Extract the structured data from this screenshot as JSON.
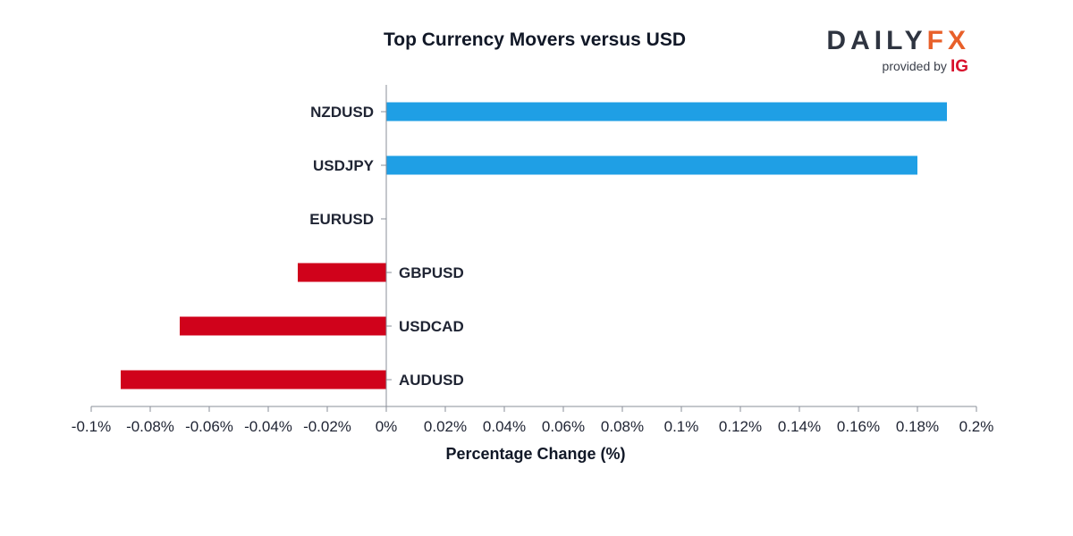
{
  "logo": {
    "brand_primary": "DAILY",
    "brand_secondary": "FX",
    "provided_by": "provided by",
    "sponsor": "IG"
  },
  "colors": {
    "positive": "#1f9fe5",
    "negative": "#d0021b",
    "axis": "#8a8f99",
    "text": "#1f2433",
    "brand_dark": "#2e3440",
    "brand_orange": "#e8602a",
    "sponsor_red": "#d8102b"
  },
  "chart_data": {
    "type": "bar",
    "orientation": "horizontal",
    "title": "Top Currency Movers versus USD",
    "xlabel": "Percentage Change (%)",
    "ylabel": "",
    "categories": [
      "NZDUSD",
      "USDJPY",
      "EURUSD",
      "GBPUSD",
      "USDCAD",
      "AUDUSD"
    ],
    "values": [
      0.19,
      0.18,
      0.0,
      -0.03,
      -0.07,
      -0.09
    ],
    "xlim": [
      -0.1,
      0.2
    ],
    "xticks": [
      -0.1,
      -0.08,
      -0.06,
      -0.04,
      -0.02,
      0,
      0.02,
      0.04,
      0.06,
      0.08,
      0.1,
      0.12,
      0.14,
      0.16,
      0.18,
      0.2
    ],
    "xtick_labels": [
      "-0.1%",
      "-0.08%",
      "-0.06%",
      "-0.04%",
      "-0.02%",
      "0%",
      "0.02%",
      "0.04%",
      "0.06%",
      "0.08%",
      "0.1%",
      "0.12%",
      "0.14%",
      "0.16%",
      "0.18%",
      "0.2%"
    ],
    "grid": false,
    "legend": "none"
  }
}
